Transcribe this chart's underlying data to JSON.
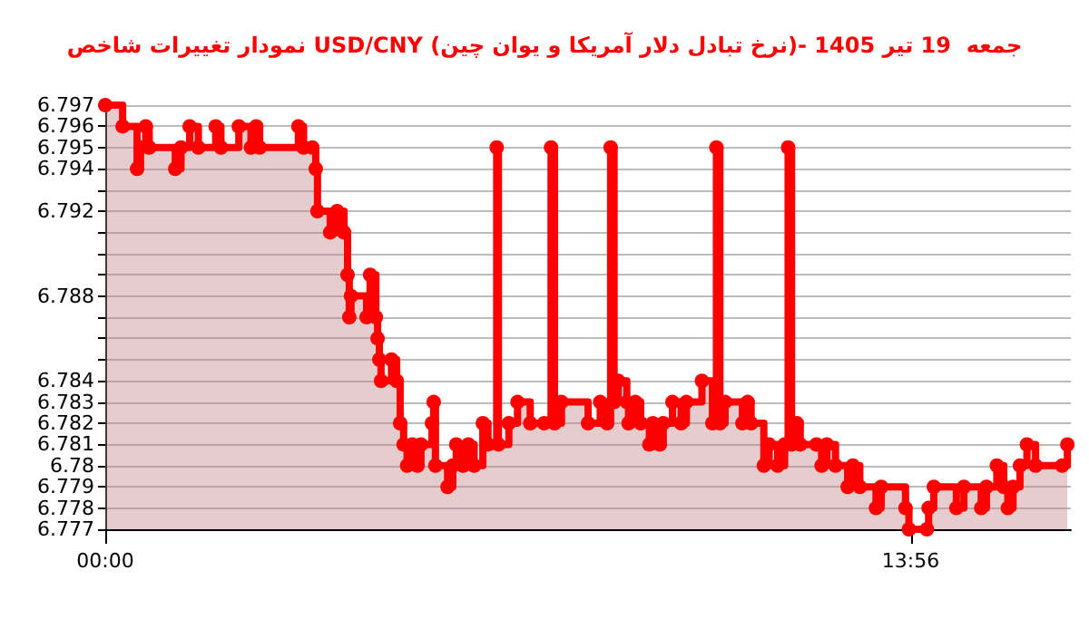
{
  "chart_data": {
    "type": "step",
    "title": "نمودار تغییرات شاخص USD/CNY (نرخ تبادل دلار آمریکا و یوان چین)- جمعه  19 تیر 1405",
    "x": [
      0,
      0.3,
      0.55,
      0.61,
      0.7,
      0.76,
      1.21,
      1.31,
      1.46,
      1.61,
      1.91,
      2.0,
      2.31,
      2.52,
      2.61,
      2.67,
      3.34,
      3.43,
      3.58,
      3.64,
      3.67,
      3.89,
      4.01,
      4.13,
      4.19,
      4.22,
      4.25,
      4.52,
      4.58,
      4.68,
      4.71,
      4.74,
      4.77,
      4.95,
      5.04,
      5.1,
      5.16,
      5.22,
      5.31,
      5.4,
      5.46,
      5.65,
      5.68,
      5.71,
      5.92,
      6.01,
      6.07,
      6.19,
      6.28,
      6.38,
      6.53,
      6.62,
      6.77,
      6.8,
      6.98,
      7.13,
      7.35,
      7.59,
      7.71,
      7.77,
      7.89,
      8.35,
      8.56,
      8.68,
      8.74,
      8.8,
      8.87,
      9.02,
      9.05,
      9.17,
      9.26,
      9.41,
      9.47,
      9.59,
      9.65,
      9.81,
      9.96,
      10.05,
      10.32,
      10.5,
      10.57,
      10.63,
      10.72,
      11.02,
      11.11,
      11.17,
      11.39,
      11.48,
      11.63,
      11.75,
      11.81,
      11.87,
      11.96,
      12.02,
      12.3,
      12.39,
      12.48,
      12.63,
      12.84,
      12.93,
      13.05,
      13.33,
      13.42,
      13.84,
      13.9,
      14.21,
      14.24,
      14.33,
      14.72,
      14.85,
      15.15,
      15.24,
      15.42,
      15.54,
      15.61,
      15.7,
      15.82,
      15.94,
      16.09,
      16.55,
      16.64
    ],
    "series": [
      {
        "color": "#ff0000",
        "values": [
          6.797,
          6.796,
          6.794,
          6.795,
          6.796,
          6.795,
          6.794,
          6.795,
          6.796,
          6.795,
          6.796,
          6.795,
          6.796,
          6.795,
          6.796,
          6.795,
          6.796,
          6.795,
          6.795,
          6.794,
          6.792,
          6.791,
          6.792,
          6.791,
          6.789,
          6.787,
          6.788,
          6.787,
          6.789,
          6.787,
          6.786,
          6.785,
          6.784,
          6.785,
          6.784,
          6.782,
          6.781,
          6.78,
          6.781,
          6.78,
          6.781,
          6.782,
          6.783,
          6.78,
          6.779,
          6.78,
          6.781,
          6.78,
          6.781,
          6.78,
          6.782,
          6.781,
          6.795,
          6.781,
          6.782,
          6.783,
          6.782,
          6.782,
          6.795,
          6.782,
          6.783,
          6.782,
          6.783,
          6.782,
          6.795,
          6.783,
          6.784,
          6.783,
          6.782,
          6.783,
          6.782,
          6.781,
          6.782,
          6.781,
          6.782,
          6.783,
          6.782,
          6.783,
          6.784,
          6.782,
          6.795,
          6.782,
          6.783,
          6.782,
          6.783,
          6.782,
          6.78,
          6.781,
          6.78,
          6.781,
          6.795,
          6.781,
          6.782,
          6.781,
          6.781,
          6.78,
          6.781,
          6.78,
          6.779,
          6.78,
          6.779,
          6.778,
          6.779,
          6.778,
          6.777,
          6.777,
          6.778,
          6.779,
          6.778,
          6.779,
          6.778,
          6.779,
          6.78,
          6.779,
          6.778,
          6.779,
          6.78,
          6.781,
          6.78,
          6.78,
          6.781
        ]
      }
    ],
    "xlim": [
      0,
      16.7
    ],
    "xticks": [
      {
        "value": 0,
        "label": "00:00"
      },
      {
        "value": 13.93,
        "label": "13:56"
      }
    ],
    "ylim": [
      6.777,
      6.797
    ],
    "yticks": [
      6.777,
      6.778,
      6.779,
      6.78,
      6.781,
      6.782,
      6.783,
      6.784,
      {
        "value": 6.785,
        "label": null
      },
      {
        "value": 6.786,
        "label": null
      },
      {
        "value": 6.787,
        "label": null
      },
      6.788,
      {
        "value": 6.789,
        "label": null
      },
      {
        "value": 6.79,
        "label": null
      },
      {
        "value": 6.791,
        "label": null
      },
      6.792,
      {
        "value": 6.793,
        "label": null
      },
      6.794,
      6.795,
      6.796,
      6.797
    ],
    "grid": "y",
    "marker": "circle"
  }
}
